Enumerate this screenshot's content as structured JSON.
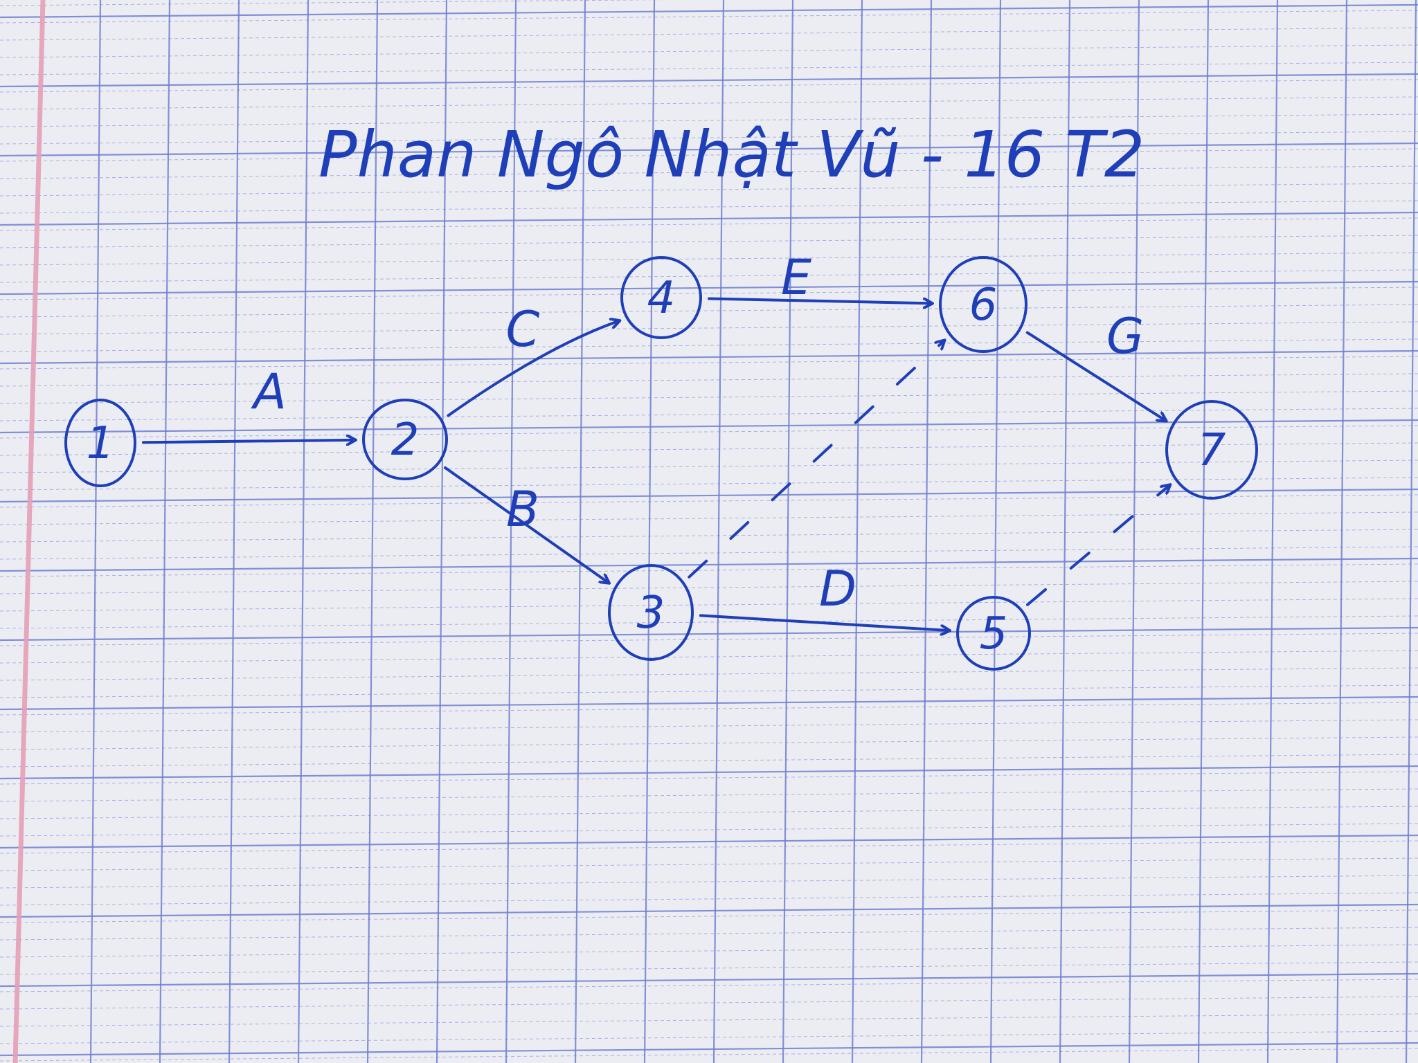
{
  "header": {
    "title": "Phan Ngô Nhật Vũ - 16 T2"
  },
  "diagram": {
    "ink_color": "#1f3fb8",
    "paper_color": "#ecedf2",
    "grid_color": "#6f7fd0",
    "margin_color": "#e6a0b8",
    "nodes": [
      {
        "id": "1",
        "label": "1"
      },
      {
        "id": "2",
        "label": "2"
      },
      {
        "id": "3",
        "label": "3"
      },
      {
        "id": "4",
        "label": "4"
      },
      {
        "id": "5",
        "label": "5"
      },
      {
        "id": "6",
        "label": "6"
      },
      {
        "id": "7",
        "label": "7"
      }
    ],
    "edges": [
      {
        "id": "A",
        "from": "1",
        "to": "2",
        "label": "A",
        "dashed": false
      },
      {
        "id": "B",
        "from": "2",
        "to": "3",
        "label": "B",
        "dashed": false
      },
      {
        "id": "C",
        "from": "2",
        "to": "4",
        "label": "C",
        "dashed": false
      },
      {
        "id": "D",
        "from": "3",
        "to": "5",
        "label": "D",
        "dashed": false
      },
      {
        "id": "E",
        "from": "4",
        "to": "6",
        "label": "E",
        "dashed": false
      },
      {
        "id": "G",
        "from": "6",
        "to": "7",
        "label": "G",
        "dashed": false
      },
      {
        "id": "d36",
        "from": "3",
        "to": "6",
        "label": "",
        "dashed": true
      },
      {
        "id": "d57",
        "from": "5",
        "to": "7",
        "label": "",
        "dashed": true
      }
    ]
  }
}
